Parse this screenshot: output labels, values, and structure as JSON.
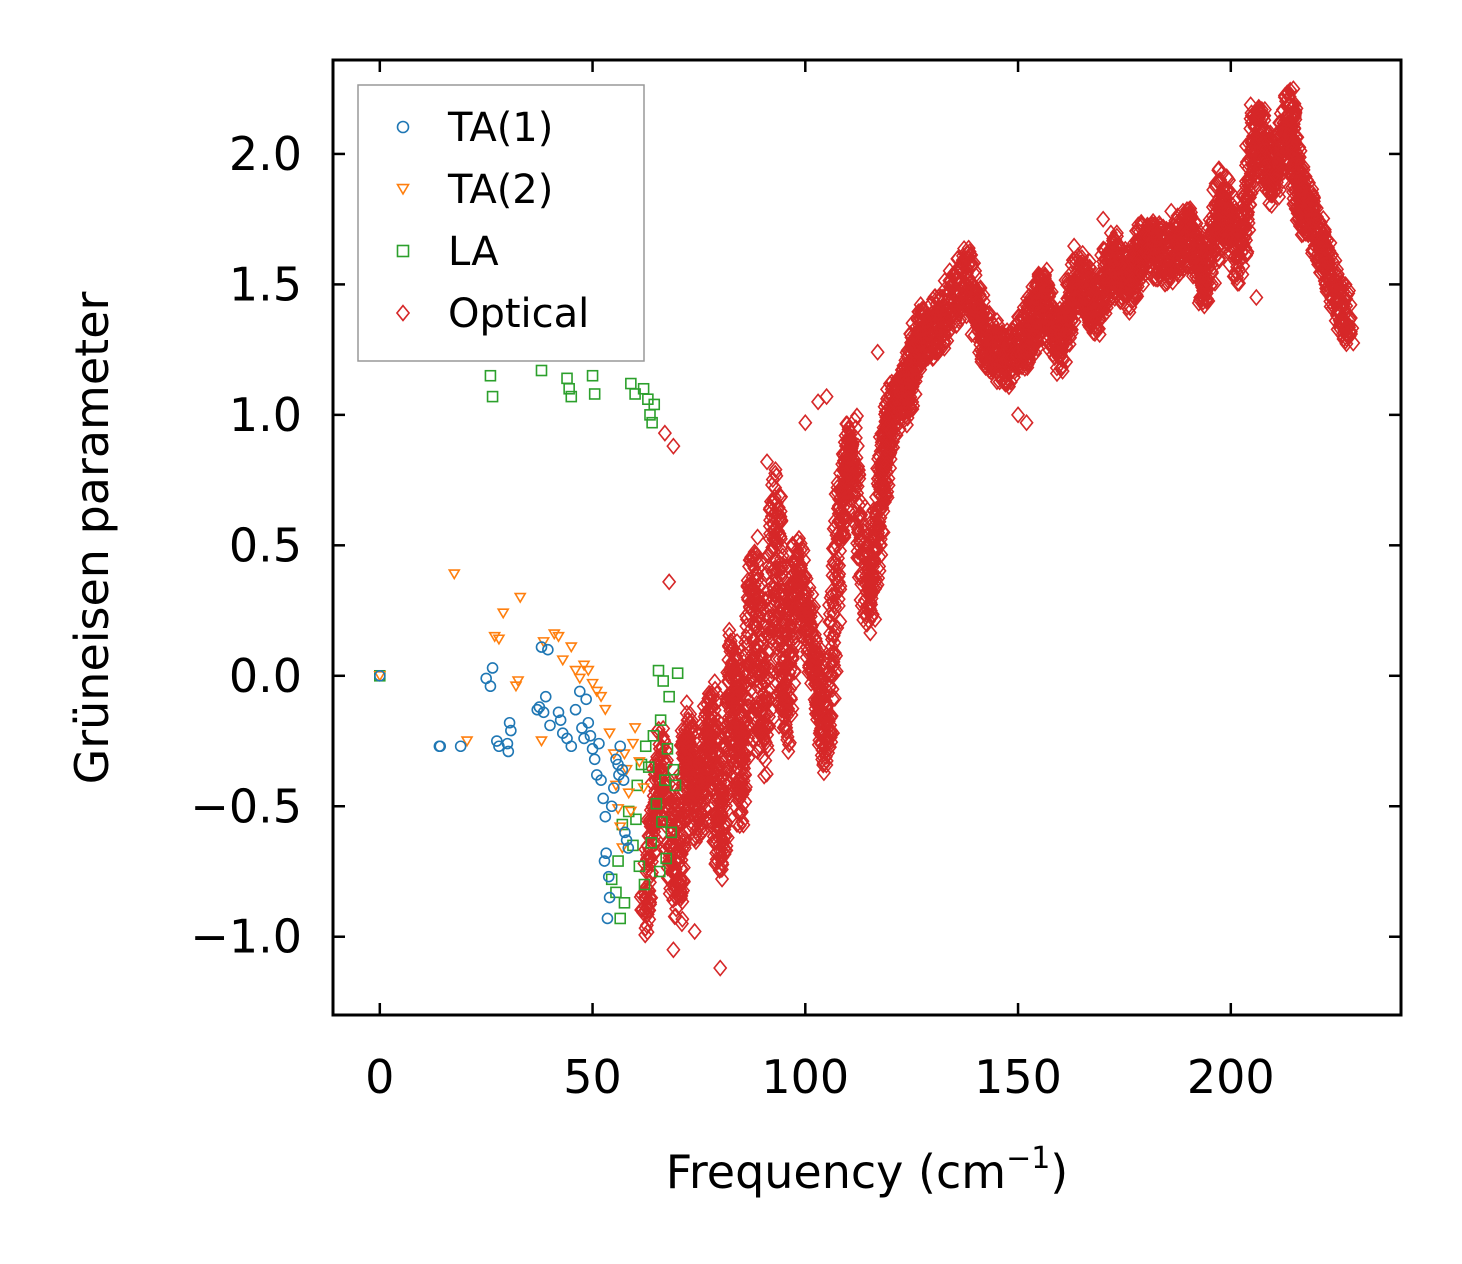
{
  "chart_data": {
    "type": "scatter",
    "title": "",
    "xlabel": "Frequency (cm",
    "xlabel_sup": "−1",
    "xlabel_close": ")",
    "ylabel": "Grüneisen parameter",
    "xlim": [
      -11,
      240
    ],
    "ylim": [
      -1.3,
      2.36
    ],
    "xticks": [
      0,
      50,
      100,
      150,
      200
    ],
    "yticks": [
      -1.0,
      -0.5,
      0.0,
      0.5,
      1.0,
      1.5,
      2.0
    ],
    "xtick_labels": [
      "0",
      "50",
      "100",
      "150",
      "200"
    ],
    "ytick_labels": [
      "−1.0",
      "−0.5",
      "0.0",
      "0.5",
      "1.0",
      "1.5",
      "2.0"
    ],
    "grid": false,
    "legend_position": "top-left",
    "series": [
      {
        "name": "TA(1)",
        "marker": "circle",
        "color": "#1f77b4",
        "points": [
          [
            0,
            0
          ],
          [
            14,
            -0.27
          ],
          [
            14.2,
            -0.27
          ],
          [
            19,
            -0.27
          ],
          [
            25,
            -0.01
          ],
          [
            26,
            -0.04
          ],
          [
            26.5,
            0.03
          ],
          [
            27.5,
            -0.25
          ],
          [
            28,
            -0.27
          ],
          [
            30,
            -0.26
          ],
          [
            30.2,
            -0.29
          ],
          [
            30.5,
            -0.18
          ],
          [
            30.8,
            -0.21
          ],
          [
            37,
            -0.13
          ],
          [
            37.5,
            -0.12
          ],
          [
            38,
            0.11
          ],
          [
            38.5,
            -0.14
          ],
          [
            39,
            -0.08
          ],
          [
            39.5,
            0.1
          ],
          [
            40,
            -0.19
          ],
          [
            42,
            -0.14
          ],
          [
            42.5,
            -0.17
          ],
          [
            43,
            -0.22
          ],
          [
            44,
            -0.24
          ],
          [
            45,
            -0.27
          ],
          [
            46,
            -0.13
          ],
          [
            47,
            -0.06
          ],
          [
            47.5,
            -0.2
          ],
          [
            48,
            -0.24
          ],
          [
            48.5,
            -0.09
          ],
          [
            49,
            -0.18
          ],
          [
            49.5,
            -0.23
          ],
          [
            50,
            -0.28
          ],
          [
            50.5,
            -0.32
          ],
          [
            51,
            -0.38
          ],
          [
            51.5,
            -0.26
          ],
          [
            52,
            -0.4
          ],
          [
            52.5,
            -0.47
          ],
          [
            52.8,
            -0.71
          ],
          [
            53,
            -0.54
          ],
          [
            53.2,
            -0.68
          ],
          [
            53.5,
            -0.93
          ],
          [
            53.8,
            -0.77
          ],
          [
            54,
            -0.85
          ],
          [
            54.5,
            -0.5
          ],
          [
            55,
            -0.43
          ],
          [
            55.5,
            -0.32
          ],
          [
            56,
            -0.34
          ],
          [
            56.2,
            -0.38
          ],
          [
            56.5,
            -0.27
          ],
          [
            57,
            -0.36
          ],
          [
            57.3,
            -0.4
          ],
          [
            57.6,
            -0.6
          ],
          [
            58,
            -0.63
          ],
          [
            58.4,
            -0.66
          ]
        ]
      },
      {
        "name": "TA(2)",
        "marker": "triangle-down",
        "color": "#ff7f0e",
        "points": [
          [
            0,
            0
          ],
          [
            17.5,
            0.39
          ],
          [
            20.5,
            -0.25
          ],
          [
            27,
            0.15
          ],
          [
            28,
            0.14
          ],
          [
            29,
            0.24
          ],
          [
            32,
            -0.04
          ],
          [
            32.5,
            -0.02
          ],
          [
            33,
            0.3
          ],
          [
            38,
            -0.25
          ],
          [
            38.5,
            0.13
          ],
          [
            41,
            0.16
          ],
          [
            42,
            0.15
          ],
          [
            43,
            0.06
          ],
          [
            45,
            0.11
          ],
          [
            46,
            0.02
          ],
          [
            47,
            -0.01
          ],
          [
            48,
            0.04
          ],
          [
            49,
            0.02
          ],
          [
            50,
            -0.03
          ],
          [
            51,
            -0.06
          ],
          [
            52,
            -0.08
          ],
          [
            53,
            -0.13
          ],
          [
            54,
            -0.22
          ],
          [
            55,
            -0.3
          ],
          [
            55.5,
            -0.42
          ],
          [
            56,
            -0.51
          ],
          [
            56.5,
            -0.58
          ],
          [
            57,
            -0.66
          ],
          [
            57.5,
            -0.3
          ],
          [
            58,
            -0.36
          ],
          [
            58.5,
            -0.45
          ],
          [
            59,
            -0.52
          ],
          [
            59.5,
            -0.26
          ],
          [
            60,
            -0.2
          ],
          [
            61,
            -0.33
          ],
          [
            62,
            -0.43
          ]
        ]
      },
      {
        "name": "LA",
        "marker": "square",
        "color": "#2ca02c",
        "points": [
          [
            0,
            0
          ],
          [
            26,
            1.15
          ],
          [
            26.5,
            1.07
          ],
          [
            38,
            1.17
          ],
          [
            44,
            1.14
          ],
          [
            44.5,
            1.1
          ],
          [
            45,
            1.07
          ],
          [
            50,
            1.15
          ],
          [
            50.5,
            1.08
          ],
          [
            54.5,
            -0.78
          ],
          [
            55.5,
            -0.83
          ],
          [
            56,
            -0.71
          ],
          [
            56.5,
            -0.93
          ],
          [
            57,
            -0.57
          ],
          [
            57.5,
            -0.87
          ],
          [
            58.5,
            -0.52
          ],
          [
            59,
            1.12
          ],
          [
            59.5,
            -0.65
          ],
          [
            60,
            1.08
          ],
          [
            60.2,
            -0.55
          ],
          [
            60.5,
            -0.42
          ],
          [
            61,
            -0.73
          ],
          [
            61.5,
            -0.34
          ],
          [
            62,
            1.1
          ],
          [
            62.2,
            -0.8
          ],
          [
            62.5,
            -0.27
          ],
          [
            63,
            1.06
          ],
          [
            63.2,
            -0.35
          ],
          [
            63.5,
            1.0
          ],
          [
            63.8,
            -0.64
          ],
          [
            64,
            0.97
          ],
          [
            64.3,
            -0.23
          ],
          [
            64.5,
            1.04
          ],
          [
            65,
            -0.49
          ],
          [
            65.5,
            0.02
          ],
          [
            65.8,
            -0.75
          ],
          [
            66,
            -0.17
          ],
          [
            66.3,
            -0.56
          ],
          [
            66.6,
            -0.02
          ],
          [
            67,
            -0.4
          ],
          [
            67.3,
            -0.7
          ],
          [
            67.6,
            -0.28
          ],
          [
            68,
            -0.08
          ],
          [
            68.5,
            -0.6
          ],
          [
            69,
            -0.36
          ],
          [
            69.5,
            -0.42
          ],
          [
            70,
            0.01
          ]
        ]
      },
      {
        "name": "Optical",
        "marker": "diamond",
        "color": "#d62728",
        "generated": true,
        "anchors": [
          [
            62,
            -0.95
          ],
          [
            66,
            -0.3
          ],
          [
            70,
            -0.85
          ],
          [
            72,
            -0.2
          ],
          [
            75,
            -0.55
          ],
          [
            78,
            -0.1
          ],
          [
            80,
            -0.7
          ],
          [
            83,
            0.1
          ],
          [
            85,
            -0.5
          ],
          [
            88,
            0.45
          ],
          [
            90,
            -0.3
          ],
          [
            93,
            0.7
          ],
          [
            95,
            -0.2
          ],
          [
            98,
            0.45
          ],
          [
            102,
            0.1
          ],
          [
            105,
            -0.3
          ],
          [
            108,
            0.6
          ],
          [
            111,
            0.9
          ],
          [
            115,
            0.25
          ],
          [
            118,
            0.75
          ],
          [
            120,
            1.0
          ],
          [
            124,
            1.1
          ],
          [
            127,
            1.3
          ],
          [
            132,
            1.35
          ],
          [
            138,
            1.55
          ],
          [
            142,
            1.3
          ],
          [
            147,
            1.2
          ],
          [
            152,
            1.3
          ],
          [
            156,
            1.45
          ],
          [
            160,
            1.25
          ],
          [
            164,
            1.55
          ],
          [
            168,
            1.4
          ],
          [
            172,
            1.6
          ],
          [
            176,
            1.5
          ],
          [
            180,
            1.65
          ],
          [
            185,
            1.6
          ],
          [
            190,
            1.7
          ],
          [
            194,
            1.5
          ],
          [
            198,
            1.85
          ],
          [
            202,
            1.6
          ],
          [
            206,
            2.1
          ],
          [
            210,
            1.9
          ],
          [
            214,
            2.15
          ],
          [
            216,
            1.85
          ],
          [
            219,
            1.75
          ],
          [
            223,
            1.55
          ],
          [
            228,
            1.35
          ]
        ],
        "outliers": [
          [
            80,
            -1.12
          ],
          [
            69,
            -1.05
          ],
          [
            71,
            -0.95
          ],
          [
            74,
            -0.98
          ],
          [
            68,
            0.36
          ],
          [
            67,
            0.93
          ],
          [
            69,
            0.88
          ],
          [
            91,
            0.82
          ],
          [
            100,
            0.97
          ],
          [
            103,
            1.05
          ],
          [
            105,
            1.07
          ],
          [
            117,
            1.24
          ],
          [
            150,
            1.0
          ],
          [
            152,
            0.97
          ],
          [
            169,
            1.33
          ],
          [
            170,
            1.75
          ],
          [
            186,
            1.78
          ],
          [
            208,
            1.95
          ],
          [
            206,
            1.45
          ],
          [
            208,
            2.17
          ]
        ]
      }
    ]
  }
}
